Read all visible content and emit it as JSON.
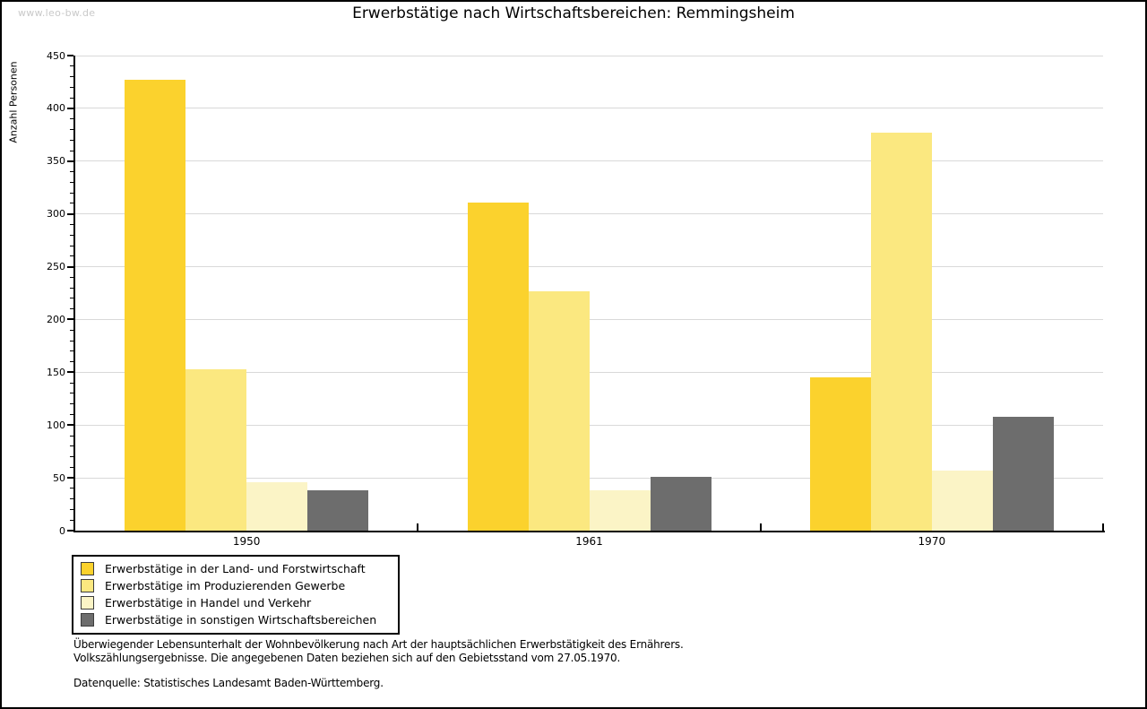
{
  "watermark": "www.leo-bw.de",
  "title": "Erwerbstätige nach Wirtschaftsbereichen: Remmingsheim",
  "chart_data": {
    "type": "bar",
    "title": "Erwerbstätige nach Wirtschaftsbereichen: Remmingsheim",
    "xlabel": "",
    "ylabel": "Anzahl Personen",
    "categories": [
      "1950",
      "1961",
      "1970"
    ],
    "series": [
      {
        "name": "Erwerbstätige in der Land- und Forstwirtschaft",
        "color": "#FBD22D",
        "values": [
          427,
          311,
          145
        ]
      },
      {
        "name": "Erwerbstätige im Produzierenden Gewerbe",
        "color": "#FBE880",
        "values": [
          153,
          227,
          377
        ]
      },
      {
        "name": "Erwerbstätige in Handel und Verkehr",
        "color": "#FBF4C6",
        "values": [
          46,
          38,
          57
        ]
      },
      {
        "name": "Erwerbstätige in sonstigen Wirtschaftsbereichen",
        "color": "#6D6D6D",
        "values": [
          38,
          51,
          108
        ]
      }
    ],
    "ylim": [
      0,
      450
    ],
    "ytick_step": 50,
    "ytick_minor_step": 10,
    "grid": true,
    "legend_position": "bottom-left",
    "gridline_color": "#d9d9d9"
  },
  "footer": {
    "line1": "Überwiegender Lebensunterhalt der Wohnbevölkerung nach Art der hauptsächlichen Erwerbstätigkeit des Ernährers.",
    "line2": "Volkszählungsergebnisse. Die angegebenen Daten beziehen sich auf den Gebietsstand vom 27.05.1970.",
    "source": "Datenquelle: Statistisches Landesamt Baden-Württemberg."
  }
}
